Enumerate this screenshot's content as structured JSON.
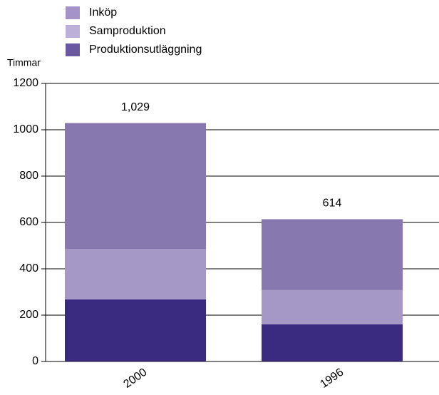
{
  "chart_data": {
    "type": "stacked_bar",
    "y_label": "Timmar",
    "categories": [
      "2000",
      "1996"
    ],
    "series": [
      {
        "name": "Produktionsutläggning",
        "color": "#3a2a80",
        "legend_color": "#6a58a0",
        "values": [
          268,
          160
        ]
      },
      {
        "name": "Samproduktion",
        "color": "#a597c6",
        "legend_color": "#bcb0d8",
        "values": [
          217,
          148
        ]
      },
      {
        "name": "Inköp",
        "color": "#8878b0",
        "legend_color": "#a393c9",
        "values": [
          544,
          306
        ]
      }
    ],
    "totals": {
      "values": [
        1029,
        614
      ],
      "value_labels": [
        "1,029",
        "614"
      ]
    },
    "ylim": [
      0,
      1200
    ],
    "yticks": [
      0,
      200,
      400,
      600,
      800,
      1000,
      1200
    ],
    "grid": true
  }
}
